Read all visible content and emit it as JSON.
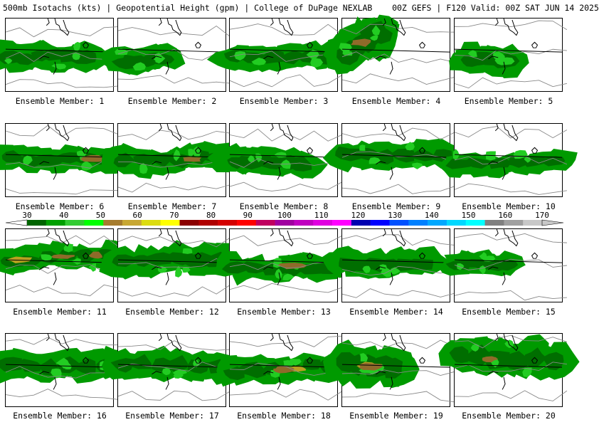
{
  "header": {
    "field": "500mb Isotachs (kts)",
    "secondary": "Geopotential Height (gpm)",
    "source": "College of DuPage NEXLAB",
    "run": "00Z GEFS",
    "valid": "F120 Valid: 00Z SAT JUN 14 2025"
  },
  "colorbar": {
    "labels": [
      "30",
      "40",
      "50",
      "60",
      "70",
      "80",
      "90",
      "100",
      "110",
      "120",
      "130",
      "140",
      "150",
      "160",
      "170"
    ],
    "colors": [
      "#006400",
      "#00a000",
      "#33cc33",
      "#00ff00",
      "#a67c2e",
      "#c8a834",
      "#dcdc10",
      "#ffff00",
      "#8b0000",
      "#b00000",
      "#d40000",
      "#ff0000",
      "#c00060",
      "#a000a0",
      "#c000c0",
      "#e000e0",
      "#ff00ff",
      "#0000b0",
      "#0000ff",
      "#0050ff",
      "#0080ff",
      "#00a8ff",
      "#00d8ff",
      "#00ffff",
      "#808080",
      "#a0a0a0",
      "#c8c8c8"
    ]
  },
  "members": [
    {
      "label": "Ensemble Member: 1"
    },
    {
      "label": "Ensemble Member: 2"
    },
    {
      "label": "Ensemble Member: 3"
    },
    {
      "label": "Ensemble Member: 4"
    },
    {
      "label": "Ensemble Member: 5"
    },
    {
      "label": "Ensemble Member: 6"
    },
    {
      "label": "Ensemble Member: 7"
    },
    {
      "label": "Ensemble Member: 8"
    },
    {
      "label": "Ensemble Member: 9"
    },
    {
      "label": "Ensemble Member: 10"
    },
    {
      "label": "Ensemble Member: 11"
    },
    {
      "label": "Ensemble Member: 12"
    },
    {
      "label": "Ensemble Member: 13"
    },
    {
      "label": "Ensemble Member: 14"
    },
    {
      "label": "Ensemble Member: 15"
    },
    {
      "label": "Ensemble Member: 16"
    },
    {
      "label": "Ensemble Member: 17"
    },
    {
      "label": "Ensemble Member: 18"
    },
    {
      "label": "Ensemble Member: 19"
    },
    {
      "label": "Ensemble Member: 20"
    }
  ]
}
